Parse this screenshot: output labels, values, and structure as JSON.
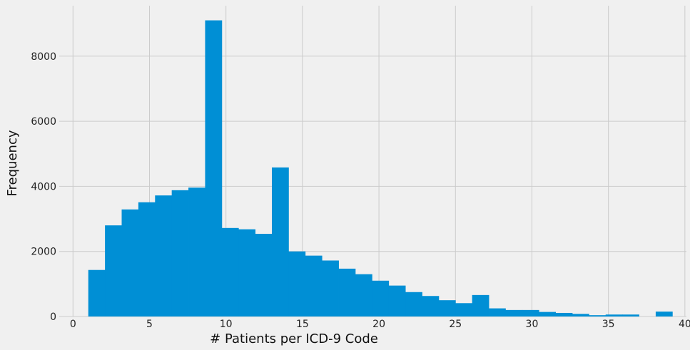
{
  "chart_data": {
    "type": "bar",
    "subtype": "histogram",
    "title": "",
    "xlabel": "# Patients per ICD-9 Code",
    "ylabel": "Frequency",
    "xlim": [
      -0.9,
      40.1
    ],
    "ylim": [
      0,
      9550
    ],
    "xticks": [
      0,
      5,
      10,
      15,
      20,
      25,
      30,
      35,
      40
    ],
    "yticks": [
      0,
      2000,
      4000,
      6000,
      8000
    ],
    "grid": true,
    "bin_edges": [
      1.0,
      2.0909,
      3.1818,
      4.2727,
      5.3636,
      6.4545,
      7.5455,
      8.6364,
      9.7273,
      10.8182,
      11.9091,
      13.0,
      14.0909,
      15.1818,
      16.2727,
      17.3636,
      18.4545,
      19.5455,
      20.6364,
      21.7273,
      22.8182,
      23.9091,
      25.0,
      26.0909,
      27.1818,
      28.2727,
      29.3636,
      30.4545,
      31.5455,
      32.6364,
      33.7273,
      34.8182,
      35.9091,
      37.0,
      38.0909,
      39.1818
    ],
    "values": [
      1430,
      2800,
      3290,
      3510,
      3720,
      3880,
      3960,
      9100,
      2720,
      2680,
      2540,
      4580,
      2000,
      1870,
      1720,
      1470,
      1300,
      1100,
      950,
      750,
      630,
      500,
      410,
      660,
      250,
      200,
      200,
      140,
      110,
      80,
      40,
      60,
      60,
      0,
      150
    ],
    "colors": {
      "bar": "#008fd5",
      "background": "#f0f0f0",
      "grid": "#cbcbcb"
    }
  }
}
